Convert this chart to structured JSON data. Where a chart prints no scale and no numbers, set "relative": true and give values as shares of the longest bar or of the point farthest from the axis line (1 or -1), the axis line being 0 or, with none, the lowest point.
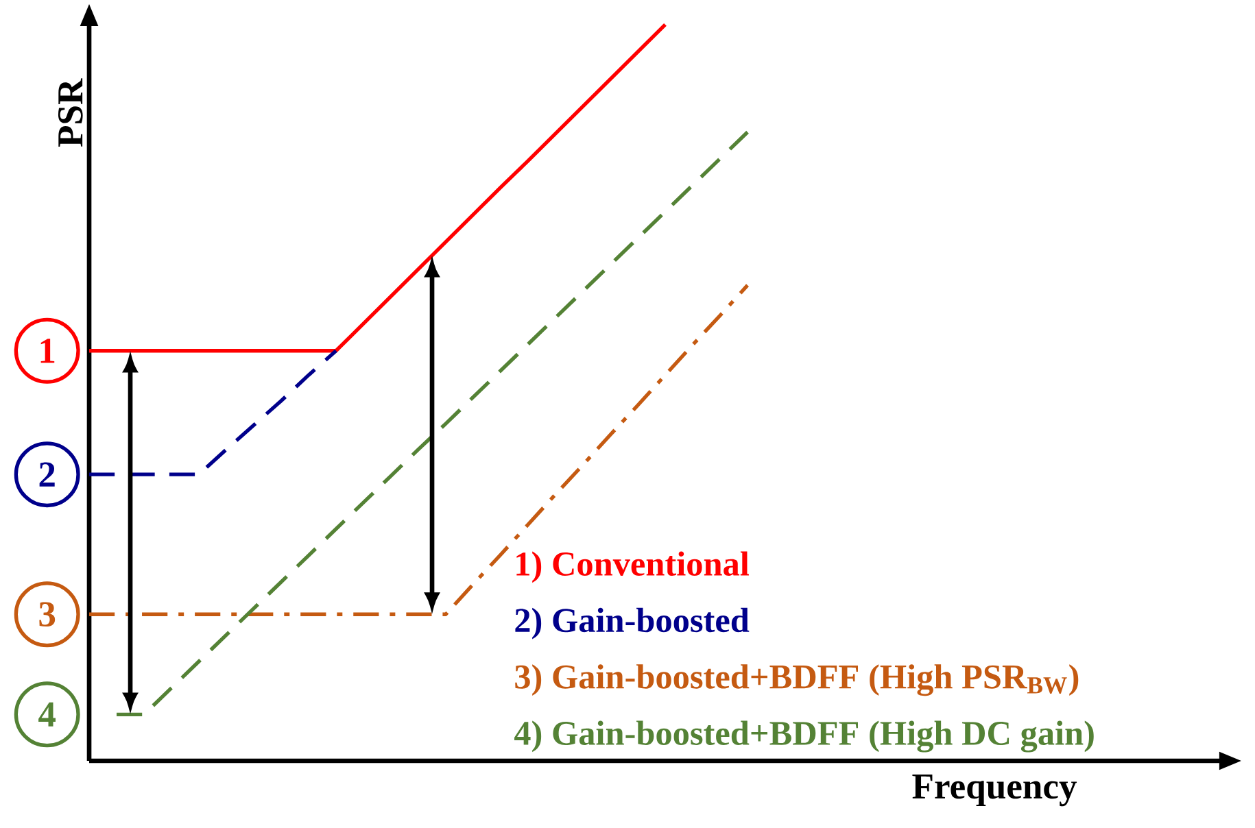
{
  "chart_data": {
    "type": "line",
    "relative": true,
    "xlabel": "Frequency",
    "ylabel": "PSR",
    "marker": "none",
    "categories": [
      null,
      null,
      null,
      null,
      null,
      null,
      null,
      null,
      null,
      null,
      null,
      null,
      null,
      null,
      null,
      null,
      null,
      null,
      null,
      null,
      null,
      null,
      null,
      null,
      null
    ],
    "series": [
      {
        "name": "1) Conventional",
        "color": "#ff0000",
        "line_style": "solid",
        "values": [
          0.557,
          0.557,
          0.557,
          0.557,
          0.557,
          0.557,
          0.557,
          0.557,
          0.557,
          0.557,
          0.594,
          0.631,
          0.668,
          0.705,
          0.742,
          0.779,
          0.815,
          0.852,
          0.889,
          0.926,
          0.963,
          1,
          null,
          null,
          null
        ]
      },
      {
        "name": "2) Gain-boosted",
        "color": "#00008b",
        "line_style": "dashed",
        "values": [
          0.389,
          0.389,
          0.389,
          0.389,
          0.389,
          0.423,
          0.456,
          0.489,
          0.524,
          0.557,
          null,
          null,
          null,
          null,
          null,
          null,
          null,
          null,
          null,
          null,
          null,
          null,
          null,
          null,
          null
        ]
      },
      {
        "name": "3) Gain-boosted+BDFF (High PSR$_{BW}$)",
        "color": "#c55a11",
        "line_style": "dashdotted",
        "values": [
          0.199,
          0.199,
          0.199,
          0.199,
          0.199,
          0.199,
          0.199,
          0.199,
          0.199,
          0.199,
          0.199,
          0.199,
          0.199,
          0.199,
          0.24,
          0.28,
          0.321,
          0.362,
          0.402,
          0.443,
          0.483,
          0.524,
          0.565,
          0.605,
          0.646
        ]
      },
      {
        "name": "4) Gain-boosted+BDFF (High DC gain)",
        "color": "#548235",
        "line_style": "dashed",
        "values": [
          null,
          0.063,
          0.063,
          0.099,
          0.135,
          0.171,
          0.207,
          0.243,
          0.279,
          0.315,
          0.351,
          0.387,
          0.423,
          0.458,
          0.494,
          0.53,
          0.566,
          0.602,
          0.638,
          0.674,
          0.71,
          0.746,
          0.782,
          0.818,
          0.854
        ]
      }
    ],
    "annotations": [
      "1",
      "2",
      "3",
      "4"
    ]
  }
}
